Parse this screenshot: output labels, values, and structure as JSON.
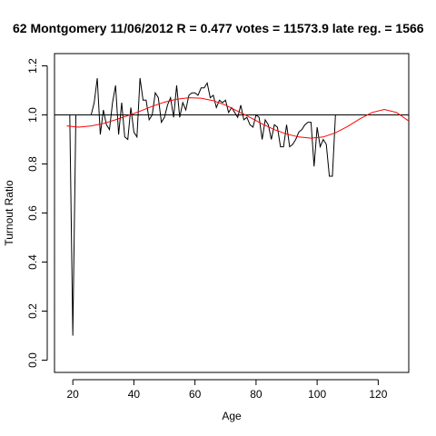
{
  "chart_data": {
    "type": "line",
    "title": "62 Montgomery 11/06/2012 R = 0.477 votes = 11573.9 late reg. = 1566",
    "xlabel": "Age",
    "ylabel": "Turnout Ratio",
    "xlim": [
      14,
      130
    ],
    "ylim": [
      -0.05,
      1.25
    ],
    "xticks": [
      20,
      40,
      60,
      80,
      100,
      120
    ],
    "yticks": [
      0.0,
      0.2,
      0.4,
      0.6,
      0.8,
      1.0,
      1.2
    ],
    "xtick_labels": [
      "20",
      "40",
      "60",
      "80",
      "100",
      "120"
    ],
    "ytick_labels": [
      "0.0",
      "0.2",
      "0.4",
      "0.6",
      "0.8",
      "1.0",
      "1.2"
    ],
    "grid": false,
    "reference_line": {
      "y": 1.0,
      "color": "#000000"
    },
    "series": [
      {
        "color": "#000000",
        "x": [
          19,
          20,
          21,
          26,
          27,
          28,
          29,
          30,
          31,
          32,
          33,
          34,
          35,
          36,
          37,
          38,
          39,
          40,
          41,
          42,
          43,
          44,
          45,
          46,
          47,
          48,
          49,
          50,
          51,
          52,
          53,
          54,
          55,
          56,
          57,
          58,
          59,
          60,
          61,
          62,
          63,
          64,
          65,
          66,
          67,
          68,
          69,
          70,
          71,
          72,
          73,
          74,
          75,
          76,
          77,
          78,
          79,
          80,
          81,
          82,
          83,
          84,
          85,
          86,
          87,
          88,
          89,
          90,
          91,
          92,
          93,
          94,
          95,
          96,
          97,
          98,
          99,
          100,
          101,
          102,
          103,
          104,
          105,
          106,
          107
        ],
        "y": [
          1.0,
          0.1,
          1.0,
          1.0,
          1.05,
          1.15,
          0.92,
          1.02,
          0.96,
          0.94,
          1.05,
          1.12,
          0.92,
          1.05,
          0.91,
          0.9,
          1.03,
          0.93,
          0.91,
          1.15,
          1.06,
          1.06,
          0.98,
          1.0,
          1.09,
          1.07,
          0.97,
          0.99,
          1.04,
          1.07,
          0.99,
          1.12,
          0.99,
          1.05,
          1.02,
          1.08,
          1.09,
          1.09,
          1.08,
          1.11,
          1.11,
          1.13,
          1.07,
          1.08,
          1.03,
          1.06,
          1.05,
          1.06,
          1.01,
          1.03,
          1.01,
          0.99,
          1.04,
          0.98,
          0.99,
          0.96,
          0.95,
          1.0,
          0.99,
          0.9,
          0.98,
          0.96,
          0.9,
          0.96,
          0.95,
          0.87,
          0.87,
          0.96,
          0.87,
          0.88,
          0.9,
          0.93,
          0.94,
          0.96,
          0.97,
          0.97,
          0.79,
          0.95,
          0.87,
          0.9,
          0.88,
          0.75,
          0.75,
          1.0,
          1.0
        ]
      },
      {
        "color": "#ff0000",
        "x": [
          18,
          22,
          26,
          30,
          34,
          38,
          42,
          46,
          50,
          54,
          58,
          62,
          66,
          70,
          74,
          78,
          82,
          86,
          90,
          94,
          98,
          102,
          106,
          110,
          114,
          118,
          122,
          126,
          130
        ],
        "y": [
          0.955,
          0.95,
          0.955,
          0.965,
          0.98,
          0.997,
          1.015,
          1.035,
          1.052,
          1.064,
          1.07,
          1.068,
          1.058,
          1.04,
          1.015,
          0.99,
          0.963,
          0.94,
          0.922,
          0.91,
          0.905,
          0.91,
          0.927,
          0.953,
          0.984,
          1.01,
          1.022,
          1.01,
          0.975
        ]
      }
    ]
  }
}
